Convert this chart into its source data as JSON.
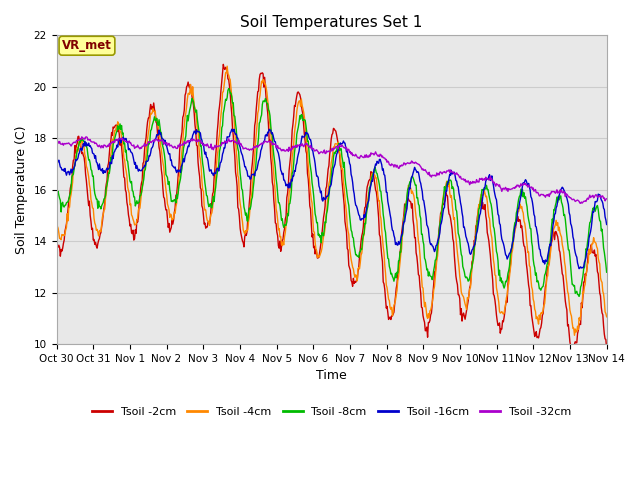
{
  "title": "Soil Temperatures Set 1",
  "xlabel": "Time",
  "ylabel": "Soil Temperature (C)",
  "ylim": [
    10,
    22
  ],
  "yticks": [
    10,
    12,
    14,
    16,
    18,
    20,
    22
  ],
  "bg_color": "#e8e8e8",
  "fig_color": "#ffffff",
  "annotation_text": "VR_met",
  "annotation_bbox_facecolor": "#ffff99",
  "annotation_bbox_edgecolor": "#999900",
  "annotation_text_color": "#800000",
  "series": [
    {
      "label": "Tsoil -2cm",
      "color": "#cc0000",
      "lw": 1.0
    },
    {
      "label": "Tsoil -4cm",
      "color": "#ff8800",
      "lw": 1.0
    },
    {
      "label": "Tsoil -8cm",
      "color": "#00bb00",
      "lw": 1.0
    },
    {
      "label": "Tsoil -16cm",
      "color": "#0000cc",
      "lw": 1.0
    },
    {
      "label": "Tsoil -32cm",
      "color": "#aa00cc",
      "lw": 1.0
    }
  ],
  "xtick_labels": [
    "Oct 30",
    "Oct 31",
    "Nov 1",
    "Nov 2",
    "Nov 3",
    "Nov 4",
    "Nov 5",
    "Nov 6",
    "Nov 7",
    "Nov 8",
    "Nov 9",
    "Nov 10",
    "Nov 11",
    "Nov 12",
    "Nov 13",
    "Nov 14"
  ],
  "xtick_positions": [
    0,
    1,
    2,
    3,
    4,
    5,
    6,
    7,
    8,
    9,
    10,
    11,
    12,
    13,
    14,
    15
  ],
  "grid_color": "#cccccc",
  "tick_fontsize": 7.5
}
